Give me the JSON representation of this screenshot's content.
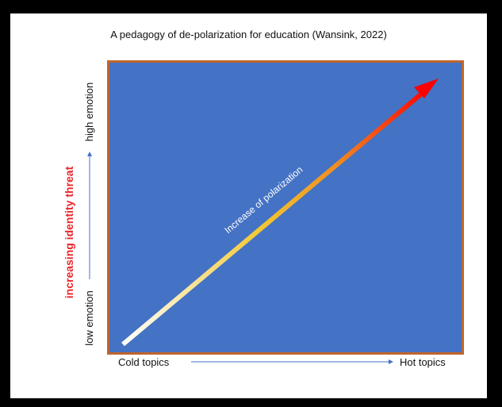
{
  "title": "A pedagogy of de-polarization for education (Wansink, 2022)",
  "diagram": {
    "arrow_label": "Increase of polarization",
    "x_axis": {
      "left_label": "Cold topics",
      "right_label": "Hot topics"
    },
    "y_axis": {
      "bottom_label": "low emotion",
      "top_label": "high emotion",
      "side_label": "increasing identity threat"
    }
  },
  "colors": {
    "background": "#000000",
    "panel": "#4472c4",
    "panel_border": "#c0652b",
    "side_label": "#e8262b",
    "arrow_gradient": [
      "#ffffff",
      "#f3c832",
      "#f08d22",
      "#ff0000"
    ],
    "axis_arrow": "#4472c4"
  }
}
